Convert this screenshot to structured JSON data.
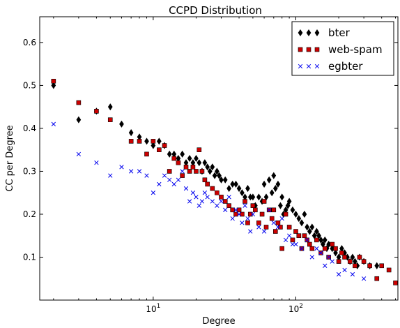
{
  "chart_data": {
    "type": "scatter",
    "title": "CCPD Distribution",
    "xlabel": "Degree",
    "ylabel": "CC per Degree",
    "xscale": "log",
    "xlim": [
      1.6,
      520
    ],
    "ylim": [
      0,
      0.66
    ],
    "yticks": [
      0.1,
      0.2,
      0.3,
      0.4,
      0.5,
      0.6
    ],
    "ytick_labels": [
      "0.1",
      "0.2",
      "0.3",
      "0.4",
      "0.5",
      "0.6"
    ],
    "xticks": [
      10,
      100
    ],
    "xtick_labels": [
      {
        "base": "10",
        "exp": "1"
      },
      {
        "base": "10",
        "exp": "2"
      }
    ],
    "legend_placement": "top-right",
    "grid": false,
    "series": [
      {
        "name": "bter",
        "marker": "diamond",
        "color": "#000000",
        "x": [
          2,
          3,
          4,
          5,
          6,
          7,
          8,
          9,
          10,
          11,
          12,
          13,
          14,
          15,
          16,
          17,
          18,
          19,
          20,
          21,
          22,
          23,
          24,
          25,
          26,
          27,
          28,
          29,
          30,
          32,
          34,
          36,
          38,
          40,
          42,
          44,
          46,
          48,
          50,
          52,
          55,
          58,
          60,
          62,
          65,
          68,
          70,
          72,
          75,
          78,
          80,
          82,
          85,
          88,
          90,
          95,
          100,
          105,
          110,
          115,
          120,
          125,
          130,
          135,
          140,
          145,
          150,
          155,
          160,
          165,
          170,
          180,
          190,
          200,
          210,
          220,
          230,
          240,
          250,
          260,
          270,
          280,
          300,
          330,
          370
        ],
        "y": [
          0.5,
          0.42,
          0.44,
          0.45,
          0.41,
          0.39,
          0.38,
          0.37,
          0.36,
          0.37,
          0.36,
          0.34,
          0.34,
          0.33,
          0.34,
          0.32,
          0.33,
          0.32,
          0.33,
          0.32,
          0.3,
          0.32,
          0.31,
          0.3,
          0.31,
          0.29,
          0.3,
          0.29,
          0.28,
          0.28,
          0.26,
          0.27,
          0.27,
          0.26,
          0.25,
          0.24,
          0.26,
          0.24,
          0.24,
          0.22,
          0.24,
          0.23,
          0.27,
          0.24,
          0.28,
          0.25,
          0.29,
          0.26,
          0.27,
          0.22,
          0.24,
          0.2,
          0.21,
          0.22,
          0.23,
          0.21,
          0.2,
          0.19,
          0.18,
          0.2,
          0.17,
          0.16,
          0.17,
          0.15,
          0.16,
          0.15,
          0.14,
          0.13,
          0.14,
          0.12,
          0.13,
          0.12,
          0.11,
          0.1,
          0.12,
          0.11,
          0.1,
          0.09,
          0.1,
          0.09,
          0.08,
          0.1,
          0.09,
          0.08,
          0.08
        ]
      },
      {
        "name": "web-spam",
        "marker": "square",
        "color": "#cc0000",
        "x": [
          2,
          3,
          4,
          5,
          7,
          8,
          9,
          10,
          11,
          12,
          13,
          14,
          15,
          16,
          17,
          18,
          19,
          20,
          21,
          22,
          23,
          24,
          26,
          28,
          30,
          32,
          34,
          36,
          38,
          40,
          42,
          44,
          46,
          48,
          50,
          52,
          55,
          58,
          60,
          62,
          65,
          68,
          70,
          72,
          75,
          78,
          80,
          85,
          90,
          95,
          100,
          105,
          110,
          115,
          120,
          125,
          130,
          140,
          150,
          160,
          170,
          180,
          190,
          200,
          210,
          220,
          240,
          260,
          280,
          300,
          330,
          370,
          400,
          450,
          500
        ],
        "y": [
          0.51,
          0.46,
          0.44,
          0.42,
          0.37,
          0.37,
          0.34,
          0.37,
          0.35,
          0.36,
          0.3,
          0.33,
          0.32,
          0.29,
          0.31,
          0.3,
          0.31,
          0.3,
          0.35,
          0.3,
          0.28,
          0.27,
          0.26,
          0.25,
          0.24,
          0.23,
          0.22,
          0.21,
          0.2,
          0.21,
          0.2,
          0.23,
          0.18,
          0.2,
          0.22,
          0.21,
          0.18,
          0.2,
          0.23,
          0.17,
          0.21,
          0.19,
          0.21,
          0.16,
          0.18,
          0.17,
          0.12,
          0.2,
          0.17,
          0.14,
          0.16,
          0.15,
          0.12,
          0.15,
          0.14,
          0.13,
          0.12,
          0.14,
          0.11,
          0.12,
          0.1,
          0.13,
          0.12,
          0.09,
          0.11,
          0.1,
          0.09,
          0.08,
          0.1,
          0.09,
          0.08,
          0.05,
          0.08,
          0.07,
          0.04
        ]
      },
      {
        "name": "egbter",
        "marker": "x",
        "color": "#0000ee",
        "x": [
          2,
          3,
          4,
          5,
          6,
          7,
          8,
          9,
          10,
          11,
          12,
          13,
          14,
          15,
          16,
          17,
          18,
          19,
          20,
          21,
          22,
          23,
          24,
          26,
          28,
          30,
          32,
          34,
          36,
          38,
          40,
          42,
          44,
          46,
          48,
          50,
          55,
          60,
          65,
          70,
          75,
          80,
          85,
          90,
          95,
          100,
          110,
          120,
          130,
          140,
          150,
          160,
          170,
          180,
          200,
          220,
          250,
          300
        ],
        "y": [
          0.41,
          0.34,
          0.32,
          0.29,
          0.31,
          0.3,
          0.3,
          0.29,
          0.25,
          0.27,
          0.29,
          0.28,
          0.27,
          0.28,
          0.3,
          0.26,
          0.23,
          0.25,
          0.24,
          0.22,
          0.23,
          0.25,
          0.24,
          0.23,
          0.22,
          0.23,
          0.21,
          0.24,
          0.19,
          0.21,
          0.2,
          0.18,
          0.22,
          0.19,
          0.16,
          0.2,
          0.17,
          0.16,
          0.21,
          0.18,
          0.17,
          0.19,
          0.14,
          0.15,
          0.13,
          0.13,
          0.12,
          0.14,
          0.1,
          0.12,
          0.11,
          0.08,
          0.1,
          0.09,
          0.06,
          0.07,
          0.06,
          0.05
        ]
      }
    ]
  }
}
